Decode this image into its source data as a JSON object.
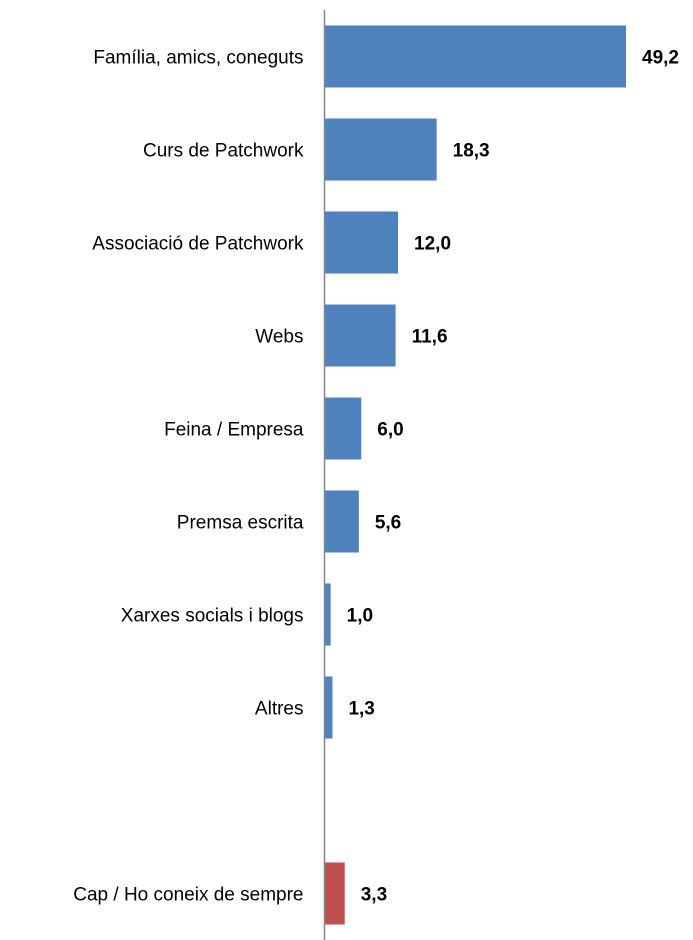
{
  "chart_data": {
    "type": "bar",
    "orientation": "horizontal",
    "categories": [
      "Família, amics, coneguts",
      "Curs de Patchwork",
      "Associació de Patchwork",
      "Webs",
      "Feina / Empresa",
      "Premsa escrita",
      "Xarxes socials i blogs",
      "Altres",
      "",
      "Cap / Ho coneix de sempre"
    ],
    "values": [
      49.2,
      18.3,
      12.0,
      11.6,
      6.0,
      5.6,
      1.0,
      1.3,
      null,
      3.3
    ],
    "value_labels": [
      "49,2",
      "18,3",
      "12,0",
      "11,6",
      "6,0",
      "5,6",
      "1,0",
      "1,3",
      "",
      "3,3"
    ],
    "bar_colors": [
      "#4f81bd",
      "#4f81bd",
      "#4f81bd",
      "#4f81bd",
      "#4f81bd",
      "#4f81bd",
      "#4f81bd",
      "#4f81bd",
      "#4f81bd",
      "#c0504d"
    ],
    "xlim": [
      0,
      50
    ],
    "grid": false,
    "legend": "none",
    "title": "",
    "xlabel": "",
    "ylabel": ""
  }
}
